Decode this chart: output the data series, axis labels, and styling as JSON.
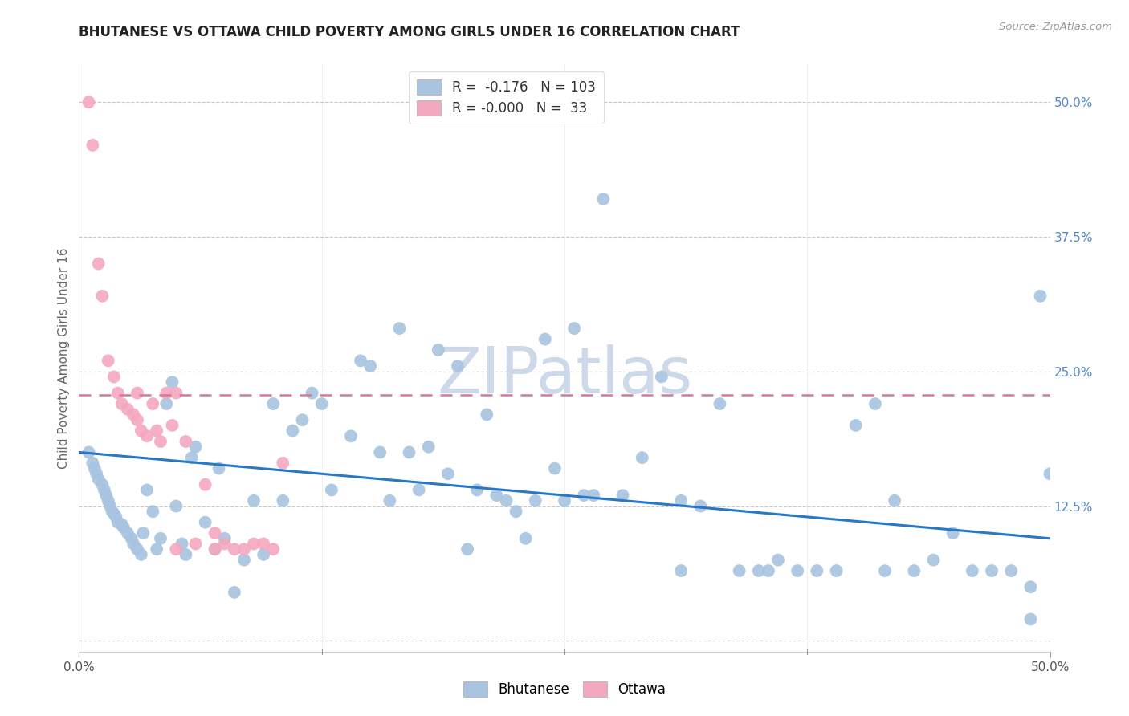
{
  "title": "BHUTANESE VS OTTAWA CHILD POVERTY AMONG GIRLS UNDER 16 CORRELATION CHART",
  "source": "Source: ZipAtlas.com",
  "ylabel": "Child Poverty Among Girls Under 16",
  "xlim": [
    0,
    0.5
  ],
  "ylim": [
    -0.01,
    0.535
  ],
  "legend_r_blue": "-0.176",
  "legend_n_blue": "103",
  "legend_r_pink": "-0.000",
  "legend_n_pink": "33",
  "blue_color": "#a8c4e0",
  "pink_color": "#f4a8c0",
  "trendline_blue_color": "#2878c8",
  "trendline_pink_color": "#d87898",
  "grid_color": "#c8c8c8",
  "watermark_color": "#cdd8e8",
  "blue_trend_x0": 0.0,
  "blue_trend_y0": 0.175,
  "blue_trend_x1": 0.5,
  "blue_trend_y1": 0.095,
  "pink_trend_x0": 0.0,
  "pink_trend_y0": 0.228,
  "pink_trend_x1": 0.5,
  "pink_trend_y1": 0.228,
  "blue_x": [
    0.005,
    0.007,
    0.008,
    0.009,
    0.01,
    0.012,
    0.013,
    0.014,
    0.015,
    0.016,
    0.017,
    0.018,
    0.019,
    0.02,
    0.022,
    0.023,
    0.025,
    0.027,
    0.028,
    0.03,
    0.032,
    0.033,
    0.035,
    0.038,
    0.04,
    0.042,
    0.045,
    0.048,
    0.05,
    0.053,
    0.055,
    0.058,
    0.06,
    0.065,
    0.07,
    0.072,
    0.075,
    0.08,
    0.085,
    0.09,
    0.095,
    0.1,
    0.105,
    0.11,
    0.115,
    0.12,
    0.125,
    0.13,
    0.14,
    0.145,
    0.15,
    0.155,
    0.16,
    0.165,
    0.17,
    0.175,
    0.18,
    0.185,
    0.19,
    0.195,
    0.2,
    0.205,
    0.21,
    0.215,
    0.22,
    0.225,
    0.23,
    0.235,
    0.24,
    0.245,
    0.25,
    0.255,
    0.26,
    0.265,
    0.27,
    0.28,
    0.29,
    0.3,
    0.31,
    0.32,
    0.33,
    0.34,
    0.35,
    0.36,
    0.37,
    0.38,
    0.39,
    0.4,
    0.41,
    0.42,
    0.43,
    0.44,
    0.45,
    0.46,
    0.47,
    0.48,
    0.49,
    0.495,
    0.5,
    0.31,
    0.355,
    0.415,
    0.49
  ],
  "blue_y": [
    0.175,
    0.165,
    0.16,
    0.155,
    0.15,
    0.145,
    0.14,
    0.135,
    0.13,
    0.125,
    0.12,
    0.118,
    0.115,
    0.11,
    0.108,
    0.105,
    0.1,
    0.095,
    0.09,
    0.085,
    0.08,
    0.1,
    0.14,
    0.12,
    0.085,
    0.095,
    0.22,
    0.24,
    0.125,
    0.09,
    0.08,
    0.17,
    0.18,
    0.11,
    0.085,
    0.16,
    0.095,
    0.045,
    0.075,
    0.13,
    0.08,
    0.22,
    0.13,
    0.195,
    0.205,
    0.23,
    0.22,
    0.14,
    0.19,
    0.26,
    0.255,
    0.175,
    0.13,
    0.29,
    0.175,
    0.14,
    0.18,
    0.27,
    0.155,
    0.255,
    0.085,
    0.14,
    0.21,
    0.135,
    0.13,
    0.12,
    0.095,
    0.13,
    0.28,
    0.16,
    0.13,
    0.29,
    0.135,
    0.135,
    0.41,
    0.135,
    0.17,
    0.245,
    0.13,
    0.125,
    0.22,
    0.065,
    0.065,
    0.075,
    0.065,
    0.065,
    0.065,
    0.2,
    0.22,
    0.13,
    0.065,
    0.075,
    0.1,
    0.065,
    0.065,
    0.065,
    0.05,
    0.32,
    0.155,
    0.065,
    0.065,
    0.065,
    0.02
  ],
  "pink_x": [
    0.005,
    0.007,
    0.01,
    0.012,
    0.015,
    0.018,
    0.02,
    0.022,
    0.025,
    0.028,
    0.03,
    0.032,
    0.035,
    0.038,
    0.04,
    0.042,
    0.045,
    0.048,
    0.05,
    0.055,
    0.06,
    0.065,
    0.07,
    0.075,
    0.08,
    0.085,
    0.09,
    0.095,
    0.1,
    0.105,
    0.03,
    0.05,
    0.07
  ],
  "pink_y": [
    0.5,
    0.46,
    0.35,
    0.32,
    0.26,
    0.245,
    0.23,
    0.22,
    0.215,
    0.21,
    0.205,
    0.195,
    0.19,
    0.22,
    0.195,
    0.185,
    0.23,
    0.2,
    0.23,
    0.185,
    0.09,
    0.145,
    0.1,
    0.09,
    0.085,
    0.085,
    0.09,
    0.09,
    0.085,
    0.165,
    0.23,
    0.085,
    0.085
  ]
}
